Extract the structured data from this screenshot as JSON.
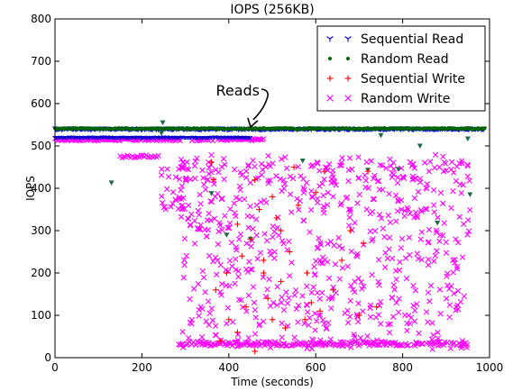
{
  "chart_data": {
    "type": "scatter",
    "title": "IOPS (256KB)",
    "xlabel": "Time (seconds)",
    "ylabel": "IOPS",
    "xlim": [
      0,
      1000
    ],
    "ylim": [
      0,
      800
    ],
    "xticks": [
      "0",
      "200",
      "400",
      "600",
      "800",
      "1000"
    ],
    "yticks": [
      "0",
      "100",
      "200",
      "300",
      "400",
      "500",
      "600",
      "700",
      "800"
    ],
    "grid": false,
    "legend_position": "top-right",
    "annotation": {
      "text": "Reads",
      "x": 450,
      "y": 545
    },
    "series": [
      {
        "name": "Sequential Read",
        "marker": "tri_down",
        "color": "#0000cc",
        "description": "dense band",
        "band": {
          "x_start": 0,
          "x_end": 990,
          "y": 540
        }
      },
      {
        "name": "Random Read",
        "marker": "dot",
        "color": "#006400",
        "points": [
          [
            120,
            535
          ],
          [
            250,
            540
          ],
          [
            370,
            540
          ],
          [
            520,
            540
          ],
          [
            700,
            540
          ],
          [
            850,
            540
          ]
        ],
        "outliers": [
          [
            130,
            413
          ],
          [
            245,
            530
          ],
          [
            248,
            555
          ],
          [
            360,
            388
          ],
          [
            395,
            290
          ],
          [
            450,
            280
          ],
          [
            570,
            465
          ],
          [
            720,
            443
          ],
          [
            750,
            525
          ],
          [
            790,
            445
          ],
          [
            840,
            500
          ],
          [
            880,
            318
          ],
          [
            950,
            517
          ],
          [
            955,
            385
          ]
        ]
      },
      {
        "name": "Sequential Write",
        "marker": "plus",
        "color": "#ff0000",
        "points": [
          [
            360,
            462
          ],
          [
            365,
            420
          ],
          [
            370,
            160
          ],
          [
            380,
            40
          ],
          [
            395,
            200
          ],
          [
            420,
            315
          ],
          [
            430,
            240
          ],
          [
            440,
            120
          ],
          [
            450,
            280
          ],
          [
            460,
            420
          ],
          [
            470,
            350
          ],
          [
            480,
            200
          ],
          [
            490,
            140
          ],
          [
            500,
            90
          ],
          [
            510,
            330
          ],
          [
            520,
            300
          ],
          [
            530,
            70
          ],
          [
            540,
            250
          ],
          [
            560,
            360
          ],
          [
            580,
            200
          ],
          [
            590,
            130
          ],
          [
            600,
            390
          ],
          [
            620,
            440
          ],
          [
            640,
            160
          ],
          [
            660,
            230
          ],
          [
            680,
            300
          ],
          [
            700,
            100
          ],
          [
            710,
            270
          ],
          [
            720,
            440
          ],
          [
            740,
            120
          ],
          [
            460,
            15
          ],
          [
            400,
            90
          ],
          [
            420,
            60
          ],
          [
            480,
            230
          ],
          [
            500,
            380
          ],
          [
            520,
            180
          ],
          [
            550,
            450
          ],
          [
            575,
            90
          ],
          [
            610,
            110
          ]
        ]
      },
      {
        "name": "Random Write",
        "marker": "x",
        "color": "#ff00ff",
        "band_top": {
          "x_start": 0,
          "x_end": 480,
          "y": 515
        },
        "band_bottom": {
          "x_start": 285,
          "x_end": 955,
          "y": 33
        },
        "levels": [
          30,
          100,
          150,
          210,
          250,
          300,
          350,
          400,
          440,
          465
        ]
      }
    ]
  }
}
